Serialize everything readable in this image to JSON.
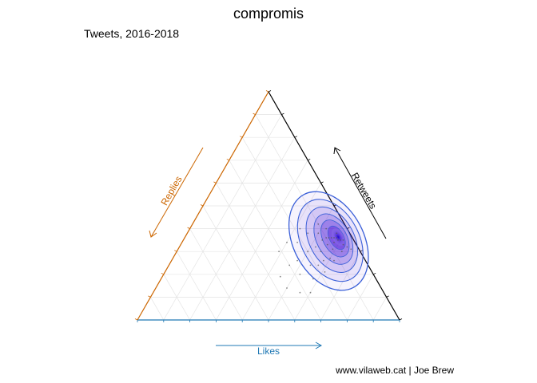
{
  "chart_data": {
    "type": "ternary-density",
    "title": "compromis",
    "subtitle": "Tweets, 2016-2018",
    "caption": "www.vilaweb.cat | Joe Brew",
    "axes": {
      "likes": {
        "label": "Likes",
        "color": "#1f78b4"
      },
      "replies": {
        "label": "Replies",
        "color": "#cc6600"
      },
      "retweets": {
        "label": "Retweets",
        "color": "#000000"
      }
    },
    "grid": true,
    "grid_divisions": 10,
    "density_peak": {
      "likes": 0.58,
      "replies": 0.06,
      "retweets": 0.36
    },
    "contour_color": "#3a5fd8",
    "fill_color": "#4b14d8",
    "points": [
      {
        "likes": 0.58,
        "replies": 0.06,
        "retweets": 0.36
      },
      {
        "likes": 0.57,
        "replies": 0.07,
        "retweets": 0.36
      },
      {
        "likes": 0.59,
        "replies": 0.06,
        "retweets": 0.35
      },
      {
        "likes": 0.56,
        "replies": 0.08,
        "retweets": 0.36
      },
      {
        "likes": 0.6,
        "replies": 0.05,
        "retweets": 0.35
      },
      {
        "likes": 0.55,
        "replies": 0.09,
        "retweets": 0.36
      },
      {
        "likes": 0.58,
        "replies": 0.08,
        "retweets": 0.34
      },
      {
        "likes": 0.61,
        "replies": 0.04,
        "retweets": 0.35
      },
      {
        "likes": 0.54,
        "replies": 0.1,
        "retweets": 0.36
      },
      {
        "likes": 0.57,
        "replies": 0.05,
        "retweets": 0.38
      },
      {
        "likes": 0.62,
        "replies": 0.05,
        "retweets": 0.33
      },
      {
        "likes": 0.53,
        "replies": 0.12,
        "retweets": 0.35
      },
      {
        "likes": 0.59,
        "replies": 0.1,
        "retweets": 0.31
      },
      {
        "likes": 0.56,
        "replies": 0.11,
        "retweets": 0.33
      },
      {
        "likes": 0.63,
        "replies": 0.07,
        "retweets": 0.3
      },
      {
        "likes": 0.52,
        "replies": 0.08,
        "retweets": 0.4
      },
      {
        "likes": 0.6,
        "replies": 0.13,
        "retweets": 0.27
      },
      {
        "likes": 0.55,
        "replies": 0.15,
        "retweets": 0.3
      },
      {
        "likes": 0.64,
        "replies": 0.04,
        "retweets": 0.32
      },
      {
        "likes": 0.5,
        "replies": 0.12,
        "retweets": 0.38
      },
      {
        "likes": 0.58,
        "replies": 0.16,
        "retweets": 0.26
      },
      {
        "likes": 0.62,
        "replies": 0.12,
        "retweets": 0.26
      },
      {
        "likes": 0.52,
        "replies": 0.16,
        "retweets": 0.32
      },
      {
        "likes": 0.48,
        "replies": 0.1,
        "retweets": 0.42
      },
      {
        "likes": 0.57,
        "replies": 0.19,
        "retweets": 0.24
      },
      {
        "likes": 0.66,
        "replies": 0.03,
        "retweets": 0.31
      },
      {
        "likes": 0.5,
        "replies": 0.2,
        "retweets": 0.3
      },
      {
        "likes": 0.61,
        "replies": 0.18,
        "retweets": 0.21
      },
      {
        "likes": 0.46,
        "replies": 0.16,
        "retweets": 0.38
      },
      {
        "likes": 0.54,
        "replies": 0.22,
        "retweets": 0.24
      },
      {
        "likes": 0.44,
        "replies": 0.22,
        "retweets": 0.34
      },
      {
        "likes": 0.58,
        "replies": 0.24,
        "retweets": 0.18
      },
      {
        "likes": 0.48,
        "replies": 0.26,
        "retweets": 0.26
      },
      {
        "likes": 0.42,
        "replies": 0.18,
        "retweets": 0.4
      },
      {
        "likes": 0.52,
        "replies": 0.28,
        "retweets": 0.2
      },
      {
        "likes": 0.46,
        "replies": 0.3,
        "retweets": 0.24
      },
      {
        "likes": 0.4,
        "replies": 0.26,
        "retweets": 0.34
      },
      {
        "likes": 0.56,
        "replies": 0.32,
        "retweets": 0.12
      },
      {
        "likes": 0.45,
        "replies": 0.36,
        "retweets": 0.19
      },
      {
        "likes": 0.39,
        "replies": 0.31,
        "retweets": 0.3
      },
      {
        "likes": 0.5,
        "replies": 0.36,
        "retweets": 0.14
      },
      {
        "likes": 0.6,
        "replies": 0.28,
        "retweets": 0.12
      }
    ]
  }
}
